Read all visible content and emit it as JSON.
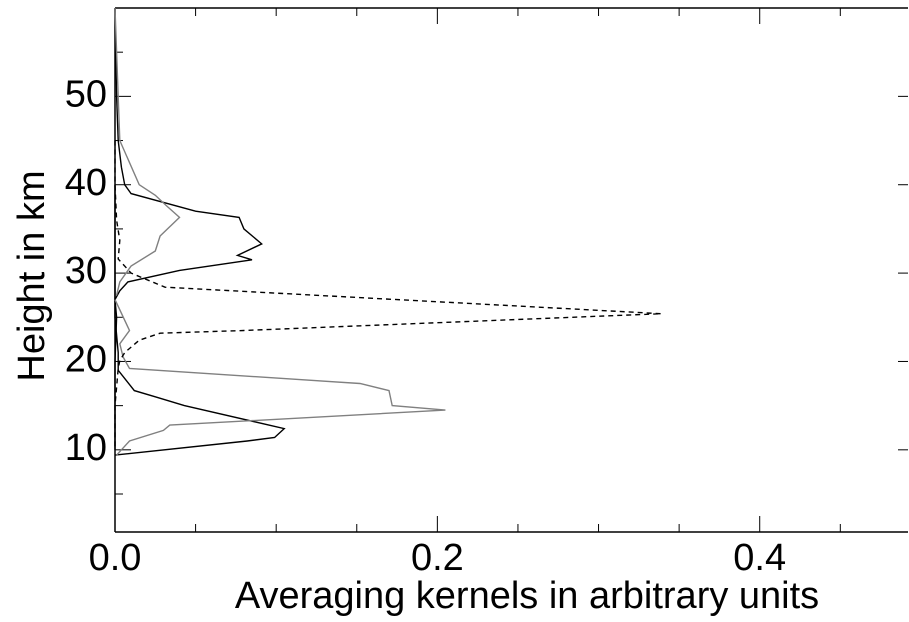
{
  "chart_data": {
    "type": "line",
    "xlabel": "Averaging kernels in arbitrary units",
    "ylabel": "Height in km",
    "xlim": [
      0,
      0.492
    ],
    "xticks": [
      {
        "value": 0,
        "label": "0.0"
      },
      0.2,
      0.4
    ],
    "xminorticks": [
      0.05,
      0.1,
      0.15,
      0.25,
      0.3,
      0.35,
      0.45
    ],
    "ylim": [
      0.7,
      60
    ],
    "yticks": [
      10,
      20,
      30,
      40,
      50
    ],
    "yminorticks": [
      5,
      15,
      25,
      35,
      45,
      55
    ],
    "series": [
      {
        "color": "#000000",
        "dash": false,
        "heights": [
          60,
          50,
          45,
          42,
          40,
          39,
          37,
          36.3,
          35,
          33.3,
          32,
          31.5,
          30.3,
          29,
          28,
          27,
          25,
          20,
          15,
          10
        ],
        "values": [
          0,
          0.001,
          0.002,
          0.004,
          0.006,
          0.01,
          0.05,
          0.077,
          0.08,
          0.091,
          0.076,
          0.085,
          0.04,
          0.008,
          0.003,
          0,
          0.001,
          0,
          0,
          0
        ]
      },
      {
        "color": "#000000",
        "dash": false,
        "heights": [
          40,
          30,
          25,
          21,
          19,
          16.7,
          16,
          15,
          12.4,
          11.4,
          11,
          9.4
        ],
        "values": [
          0,
          0,
          0,
          0.002,
          0.002,
          0.012,
          0.025,
          0.043,
          0.105,
          0.099,
          0.082,
          0
        ]
      },
      {
        "color": "#808080",
        "dash": false,
        "heights": [
          27,
          23.5,
          22,
          20.5,
          19.2,
          17.5,
          16.7,
          15,
          14.5,
          12.8,
          12.2,
          11,
          9.4
        ],
        "values": [
          0,
          0.009,
          0.003,
          0.005,
          0.009,
          0.152,
          0.17,
          0.172,
          0.205,
          0.034,
          0.03,
          0.009,
          0.001
        ]
      },
      {
        "color": "#808080",
        "dash": false,
        "heights": [
          60,
          55,
          45,
          40,
          38.8,
          37.6,
          36.3,
          34.2,
          32.5,
          30.8,
          29,
          27.5
        ],
        "values": [
          0,
          0.001,
          0.003,
          0.015,
          0.025,
          0.032,
          0.04,
          0.028,
          0.025,
          0.01,
          0.003,
          0.001
        ]
      },
      {
        "color": "#000000",
        "dash": true,
        "heights": [
          45,
          40,
          36,
          33.7,
          31.6,
          30,
          28.4,
          25.4,
          23.5,
          23.2,
          22.4,
          21,
          20.1,
          19.2,
          15,
          10
        ],
        "values": [
          0,
          0,
          0.001,
          0.003,
          0.002,
          0.01,
          0.031,
          0.339,
          0.08,
          0.028,
          0.015,
          0.006,
          0.003,
          0.002,
          0,
          0
        ]
      }
    ]
  }
}
